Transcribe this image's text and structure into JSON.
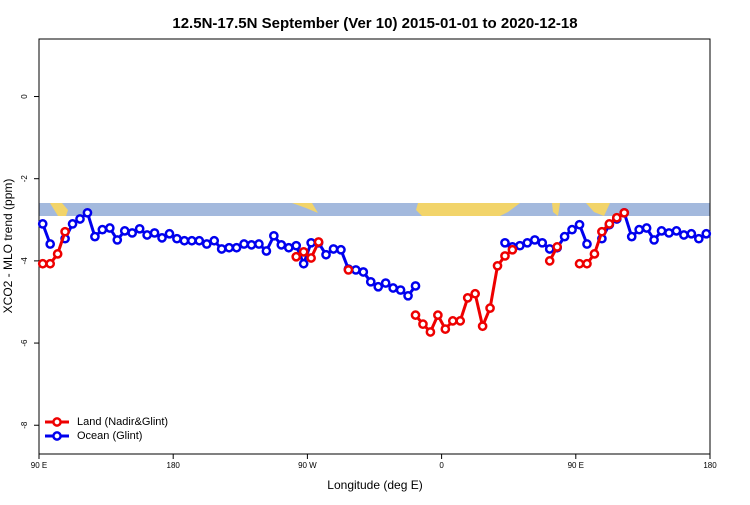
{
  "chart_data": {
    "type": "line",
    "title": "12.5N-17.5N September (Ver 10)   2015-01-01 to 2020-12-18",
    "x_label": "Longitude (deg E)",
    "y_label": "XCO2 - MLO trend (ppm)",
    "x": [
      92.5,
      97.5,
      102.5,
      107.5,
      112.5,
      117.5,
      122.5,
      127.5,
      132.5,
      137.5,
      142.5,
      147.5,
      152.5,
      157.5,
      162.5,
      167.5,
      172.5,
      177.5,
      182.5,
      187.5,
      192.5,
      197.5,
      202.5,
      207.5,
      212.5,
      217.5,
      222.5,
      227.5,
      232.5,
      237.5,
      242.5,
      247.5,
      252.5,
      257.5,
      262.5,
      267.5,
      272.5,
      277.5,
      282.5,
      287.5,
      292.5,
      297.5,
      302.5,
      307.5,
      312.5,
      317.5,
      322.5,
      327.5,
      332.5,
      337.5,
      342.5,
      347.5,
      352.5,
      357.5,
      362.5,
      367.5,
      372.5,
      377.5,
      382.5,
      387.5,
      392.5,
      397.5,
      402.5,
      407.5,
      412.5,
      417.5,
      422.5,
      427.5,
      432.5,
      437.5,
      442.5,
      447.5,
      452.5,
      457.5,
      462.5,
      467.5,
      472.5,
      477.5,
      482.5,
      487.5,
      492.5,
      497.5,
      502.5,
      507.5,
      512.5,
      517.5,
      522.5,
      527.5,
      532.5,
      537.5
    ],
    "series": [
      {
        "name": "Ocean (Glint)",
        "color": "#0000ee",
        "values": [
          -3.1,
          -3.59,
          null,
          -3.46,
          -3.1,
          -2.98,
          -2.83,
          -3.41,
          -3.24,
          -3.2,
          -3.49,
          -3.27,
          -3.32,
          -3.22,
          -3.37,
          -3.32,
          -3.44,
          -3.34,
          -3.46,
          -3.51,
          -3.51,
          -3.51,
          -3.59,
          -3.51,
          -3.71,
          -3.68,
          -3.68,
          -3.59,
          -3.61,
          -3.59,
          -3.76,
          -3.39,
          -3.61,
          -3.68,
          -3.63,
          -4.07,
          -3.56,
          -3.56,
          -3.85,
          -3.71,
          -3.73,
          -4.2,
          -4.22,
          -4.27,
          -4.51,
          -4.63,
          -4.54,
          -4.66,
          -4.71,
          -4.85,
          -4.61,
          null,
          null,
          null,
          null,
          null,
          null,
          null,
          null,
          null,
          null,
          null,
          -3.56,
          -3.66,
          -3.63,
          -3.56,
          -3.49,
          -3.56,
          -3.71,
          -3.68,
          -3.41,
          -3.24,
          -3.12,
          -3.59,
          null,
          -3.46,
          -3.12,
          -2.98,
          -2.83,
          -3.41,
          -3.24,
          -3.2,
          -3.49,
          -3.27,
          -3.32,
          -3.27,
          -3.37,
          -3.34,
          -3.46,
          -3.34
        ]
      },
      {
        "name": "Land (Nadir&Glint)",
        "color": "#ee0000",
        "values": [
          -4.07,
          -4.07,
          -3.83,
          -3.29,
          null,
          null,
          null,
          null,
          null,
          null,
          null,
          null,
          null,
          null,
          null,
          null,
          null,
          null,
          null,
          null,
          null,
          null,
          null,
          null,
          null,
          null,
          null,
          null,
          null,
          null,
          null,
          null,
          null,
          null,
          -3.9,
          -3.78,
          -3.93,
          -3.54,
          null,
          null,
          null,
          -4.22,
          null,
          null,
          null,
          null,
          null,
          null,
          null,
          null,
          -5.32,
          -5.54,
          -5.73,
          -5.32,
          -5.66,
          -5.46,
          -5.46,
          -4.9,
          -4.8,
          -5.59,
          -5.15,
          -4.12,
          -3.88,
          -3.73,
          null,
          null,
          null,
          null,
          -4.0,
          -3.66,
          null,
          null,
          -4.07,
          -4.07,
          -3.83,
          -3.29,
          -3.1,
          -2.95,
          -2.83,
          null,
          null,
          null,
          null,
          null,
          null,
          null,
          null,
          null,
          null,
          null
        ]
      }
    ],
    "legend_order": [
      "Land (Nadir&Glint)",
      "Ocean (Glint)"
    ],
    "xlim": [
      90,
      540
    ],
    "xticks": [
      {
        "value": 90,
        "label": "90 E"
      },
      180,
      {
        "value": 270,
        "label": "90 W"
      },
      {
        "value": 360,
        "label": "0"
      },
      {
        "value": 450,
        "label": "90 E"
      },
      {
        "value": 540,
        "label": "180"
      }
    ],
    "ylim": [
      -8.7,
      1.4
    ],
    "yticks": [
      -8,
      -6,
      -4,
      -2,
      0
    ],
    "legend": "bottom-left"
  }
}
